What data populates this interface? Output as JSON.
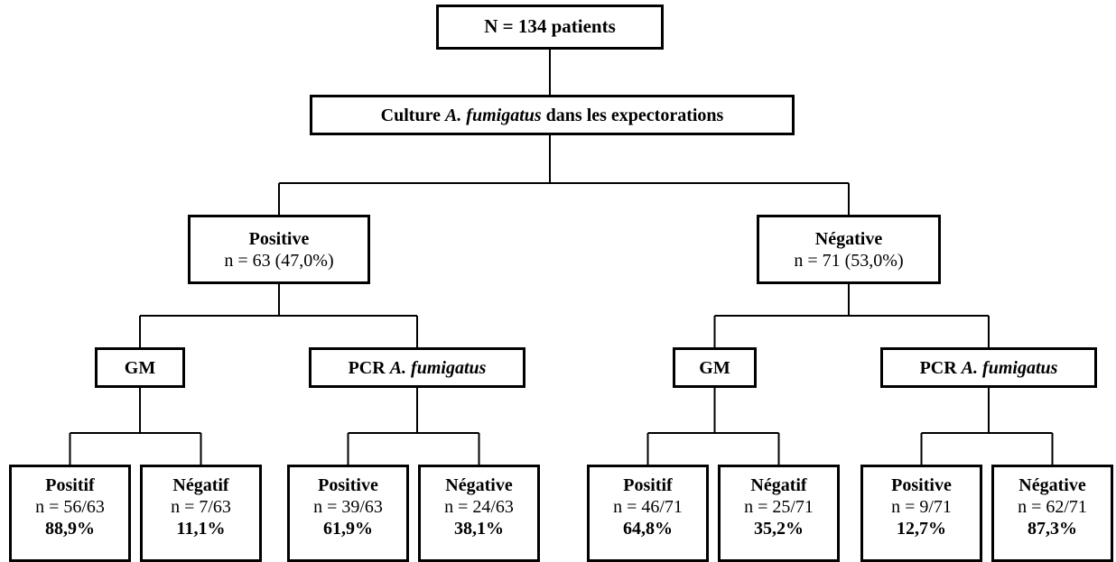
{
  "root": "N = 134 patients",
  "culture": {
    "before": "Culture",
    "italic": "A. fumigatus",
    "after": "dans les expectorations"
  },
  "groups": [
    {
      "title": "Positive",
      "count": "n = 63 (47,0%)",
      "tests": [
        {
          "label": "GM",
          "leaves": [
            {
              "title": "Positif",
              "ratio": "n = 56/63",
              "percent": "88,9%"
            },
            {
              "title": "Négatif",
              "ratio": "n = 7/63",
              "percent": "11,1%"
            }
          ]
        },
        {
          "label": "PCR",
          "italic": "A. fumigatus",
          "leaves": [
            {
              "title": "Positive",
              "ratio": "n = 39/63",
              "percent": "61,9%"
            },
            {
              "title": "Négative",
              "ratio": "n = 24/63",
              "percent": "38,1%"
            }
          ]
        }
      ]
    },
    {
      "title": "Négative",
      "count": "n = 71 (53,0%)",
      "tests": [
        {
          "label": "GM",
          "leaves": [
            {
              "title": "Positif",
              "ratio": "n = 46/71",
              "percent": "64,8%"
            },
            {
              "title": "Négatif",
              "ratio": "n = 25/71",
              "percent": "35,2%"
            }
          ]
        },
        {
          "label": "PCR",
          "italic": "A. fumigatus",
          "leaves": [
            {
              "title": "Positive",
              "ratio": "n = 9/71",
              "percent": "12,7%"
            },
            {
              "title": "Négative",
              "ratio": "n = 62/71",
              "percent": "87,3%"
            }
          ]
        }
      ]
    }
  ]
}
